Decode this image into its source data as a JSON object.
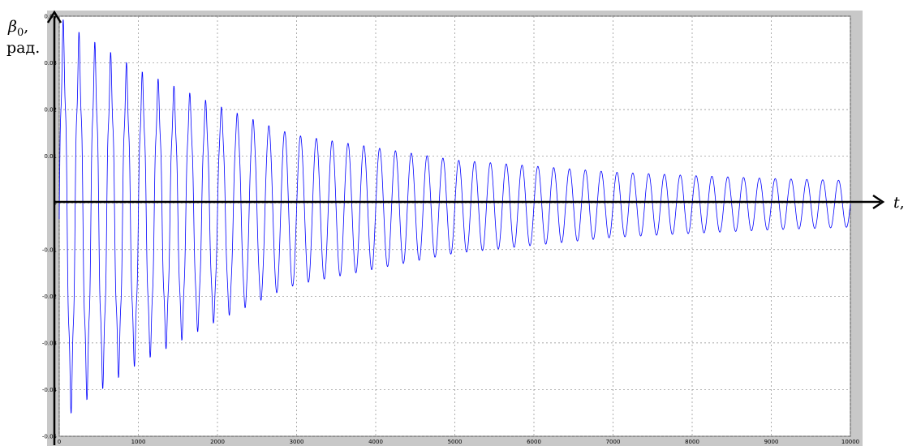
{
  "chart_data": {
    "type": "line",
    "title": "",
    "xlabel_symbol": "t",
    "xlabel_unit": ", c",
    "ylabel_symbol": "β",
    "ylabel_subscript": "0",
    "ylabel_comma": ",",
    "ylabel_unit": "рад.",
    "xlim": [
      0,
      10000
    ],
    "ylim": [
      -0.05,
      0.04
    ],
    "x_ticks": [
      "0",
      "1000",
      "2000",
      "3000",
      "4000",
      "5000",
      "6000",
      "7000",
      "8000",
      "9000",
      "10000"
    ],
    "y_ticks": [
      "0.04",
      "0.03",
      "0.02",
      "0.01",
      "0",
      "-0.01",
      "-0.02",
      "-0.03",
      "-0.04",
      "-0.05"
    ],
    "grid": true,
    "series": [
      {
        "color": "#0000ff",
        "period": 200,
        "envelope_points": [
          [
            0,
            0.039
          ],
          [
            100,
            0.039
          ],
          [
            200,
            0.037
          ],
          [
            500,
            0.034
          ],
          [
            1000,
            0.029
          ],
          [
            2000,
            0.022
          ],
          [
            3000,
            0.016
          ],
          [
            4000,
            0.013
          ],
          [
            5000,
            0.01
          ],
          [
            6000,
            0.0085
          ],
          [
            7000,
            0.007
          ],
          [
            8000,
            0.0062
          ],
          [
            9000,
            0.0055
          ],
          [
            10000,
            0.005
          ]
        ],
        "baseline_offset_points": [
          [
            0,
            -0.0035
          ],
          [
            1000,
            -0.003
          ],
          [
            2000,
            -0.0022
          ],
          [
            3000,
            -0.0015
          ],
          [
            5000,
            -0.0008
          ],
          [
            7000,
            -0.0004
          ],
          [
            10000,
            -0.0002
          ]
        ],
        "high_frequency_ripple_amplitude": 0.004,
        "high_frequency_ripple_period": 40,
        "ripple_fade_x": 2800
      }
    ]
  }
}
